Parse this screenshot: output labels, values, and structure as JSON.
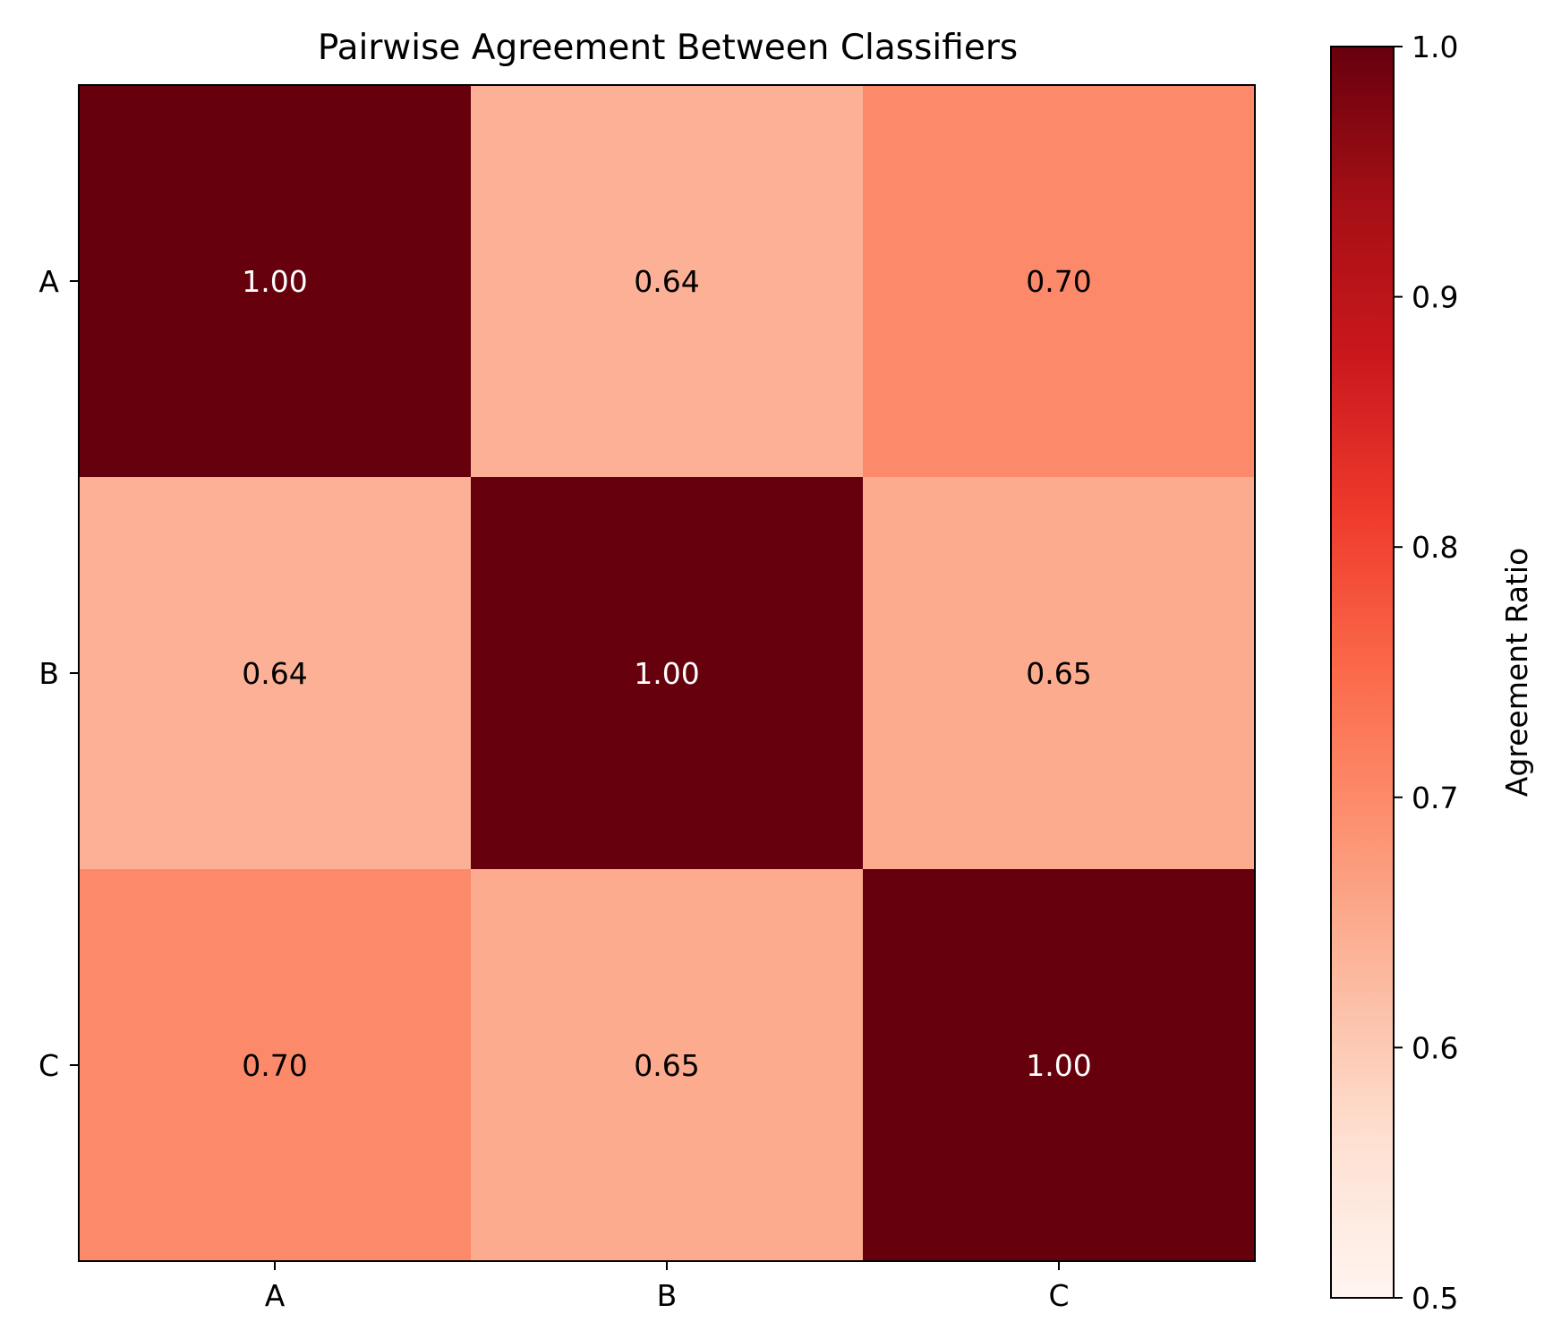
{
  "chart_data": {
    "type": "heatmap",
    "title": "Pairwise Agreement Between Classifiers",
    "x_categories": [
      "A",
      "B",
      "C"
    ],
    "y_categories": [
      "A",
      "B",
      "C"
    ],
    "values": [
      [
        1.0,
        0.64,
        0.7
      ],
      [
        0.64,
        1.0,
        0.65
      ],
      [
        0.7,
        0.65,
        1.0
      ]
    ],
    "value_labels": [
      [
        "1.00",
        "0.64",
        "0.70"
      ],
      [
        "0.64",
        "1.00",
        "0.65"
      ],
      [
        "0.70",
        "0.65",
        "1.00"
      ]
    ],
    "colormap": "Reds",
    "colorbar": {
      "label": "Agreement Ratio",
      "range": [
        0.5,
        1.0
      ],
      "ticks": [
        0.5,
        0.6,
        0.7,
        0.8,
        0.9,
        1.0
      ],
      "tick_labels": [
        "0.5",
        "0.6",
        "0.7",
        "0.8",
        "0.9",
        "1.0"
      ]
    },
    "colors": {
      "cmap_stops": [
        "#fff5f0",
        "#fee0d2",
        "#fcbba1",
        "#fc9272",
        "#fb6a4a",
        "#ef3b2c",
        "#cb181d",
        "#a50f15",
        "#67000d"
      ],
      "text_dark": "#000000",
      "text_light": "#ffffff"
    }
  }
}
